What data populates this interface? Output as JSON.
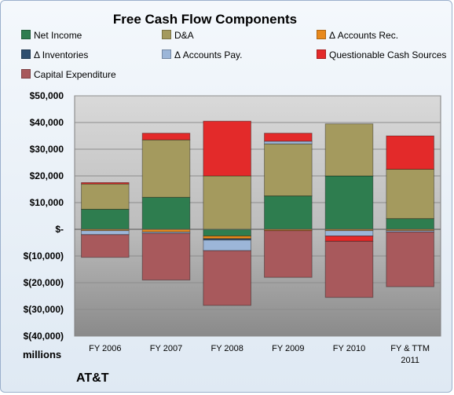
{
  "title": "Free Cash Flow Components",
  "units_label": "millions",
  "company_label": "AT&T",
  "chart_data": {
    "type": "bar",
    "stacked": true,
    "categories": [
      "FY 2006",
      "FY 2007",
      "FY 2008",
      "FY 2009",
      "FY 2010",
      "FY & TTM 2011"
    ],
    "ylim": [
      -40000,
      50000
    ],
    "yticks": [
      {
        "value": 50000,
        "label": "$50,000"
      },
      {
        "value": 40000,
        "label": "$40,000"
      },
      {
        "value": 30000,
        "label": "$30,000"
      },
      {
        "value": 20000,
        "label": "$20,000"
      },
      {
        "value": 10000,
        "label": "$10,000"
      },
      {
        "value": 0,
        "label": "$-"
      },
      {
        "value": -10000,
        "label": "$(10,000)"
      },
      {
        "value": -20000,
        "label": "$(20,000)"
      },
      {
        "value": -30000,
        "label": "$(30,000)"
      },
      {
        "value": -40000,
        "label": "$(40,000)"
      }
    ],
    "grid": true,
    "legend_position": "top",
    "series": [
      {
        "name": "Net Income",
        "color": "#2e7d4f",
        "values": [
          7500,
          12000,
          -2500,
          12500,
          20000,
          4000
        ]
      },
      {
        "name": "D&A",
        "color": "#a49a5e",
        "values": [
          9500,
          21500,
          20000,
          19500,
          19500,
          18500
        ]
      },
      {
        "name": "Δ Accounts Rec.",
        "color": "#e8891c",
        "values": [
          -500,
          -1000,
          -1000,
          -500,
          -500,
          -500
        ]
      },
      {
        "name": "Δ Inventories",
        "color": "#2f4f6f",
        "values": [
          0,
          0,
          -500,
          0,
          0,
          0
        ]
      },
      {
        "name": "Δ Accounts Pay.",
        "color": "#9cb6d8",
        "values": [
          -1500,
          -500,
          -4000,
          1000,
          -2000,
          -500
        ]
      },
      {
        "name": "Questionable Cash Sources",
        "color": "#e32a2a",
        "values": [
          500,
          2500,
          20500,
          3000,
          -2000,
          12500
        ]
      },
      {
        "name": "Capital Expenditure",
        "color": "#a8595c",
        "values": [
          -8500,
          -17500,
          -20500,
          -17500,
          -21000,
          -20500
        ]
      }
    ]
  }
}
